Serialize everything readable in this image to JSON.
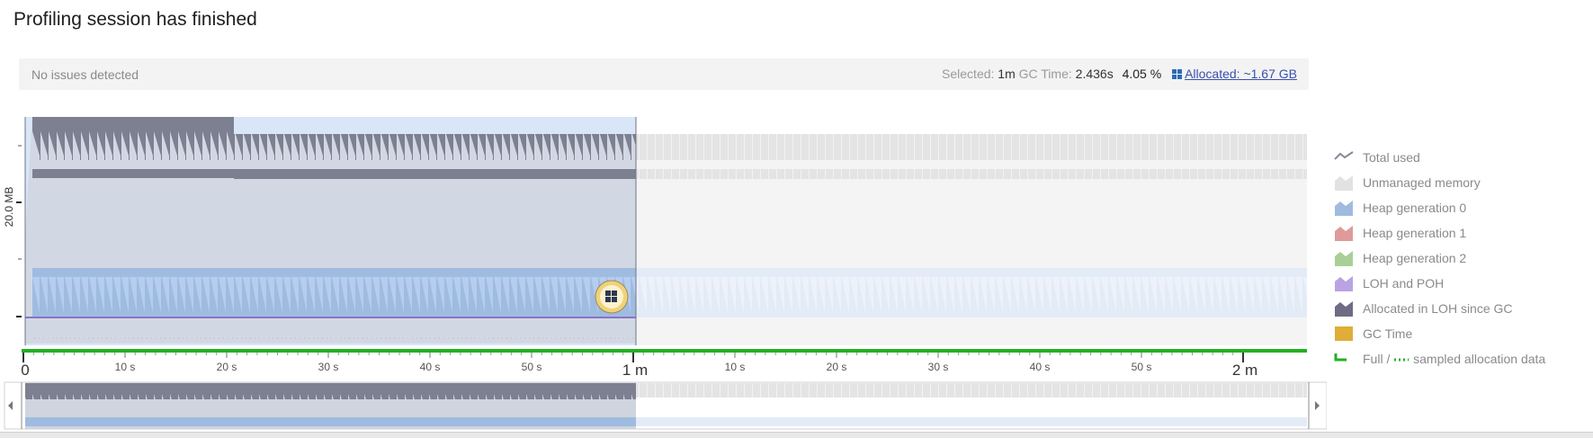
{
  "title": "Profiling session has finished",
  "summary": {
    "issues": "No issues detected",
    "selected_label": "Selected:",
    "selected_value": "1m",
    "gc_label": "GC Time:",
    "gc_value": "2.436s",
    "gc_percent": "4.05 %",
    "allocated_link": "Allocated: ~1.67 GB"
  },
  "chart": {
    "y_axis_label": "20.0 MB",
    "selection_fraction_of_timeline": 0.476,
    "timeline_labels": [
      "0",
      "10 s",
      "20 s",
      "30 s",
      "40 s",
      "50 s",
      "1 m",
      "10 s",
      "20 s",
      "30 s",
      "40 s",
      "50 s",
      "2 m"
    ],
    "colors": {
      "selection": "#d9e6f7",
      "total_used": "#7f8292",
      "unmanaged": "#e2e2e2",
      "heap_gen0": "#9fbbe0",
      "heap_gen1": "#e09a9a",
      "heap_gen2": "#a9cf97",
      "loh_poh": "#b9a3e3",
      "allocated_loh": "#6e6b86",
      "gc_time": "#e0ad38",
      "sampled": "#22b022"
    }
  },
  "legend": [
    {
      "id": "total-used",
      "label": "Total used",
      "icon": "line-icon",
      "color": "#888a96"
    },
    {
      "id": "unmanaged-memory",
      "label": "Unmanaged memory",
      "icon": "area-icon",
      "color": "#e2e2e2"
    },
    {
      "id": "heap-generation-0",
      "label": "Heap generation 0",
      "icon": "area-icon",
      "color": "#9fbbe0"
    },
    {
      "id": "heap-generation-1",
      "label": "Heap generation 1",
      "icon": "area-icon",
      "color": "#e09a9a"
    },
    {
      "id": "heap-generation-2",
      "label": "Heap generation 2",
      "icon": "area-icon",
      "color": "#a9cf97"
    },
    {
      "id": "loh-and-poh",
      "label": "LOH and POH",
      "icon": "area-icon",
      "color": "#b9a3e3"
    },
    {
      "id": "allocated-in-loh-since-gc",
      "label": "Allocated in LOH since GC",
      "icon": "area-icon",
      "color": "#6e6b86"
    },
    {
      "id": "gc-time",
      "label": "GC Time",
      "icon": "square-icon",
      "color": "#e0ad38"
    }
  ],
  "legend_sampled": {
    "label_a": "Full /",
    "label_b": "sampled allocation data",
    "color": "#22b022"
  }
}
